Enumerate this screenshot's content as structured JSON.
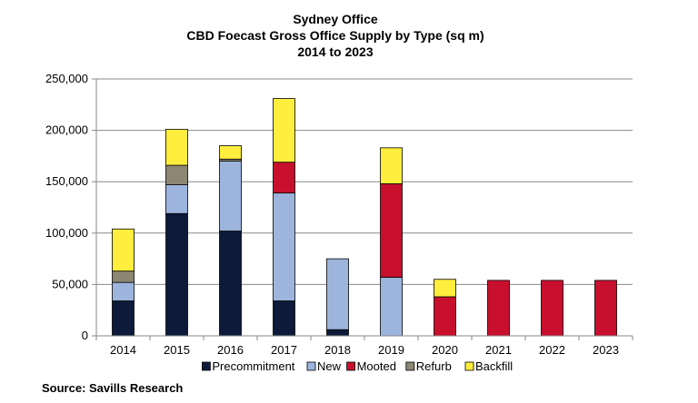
{
  "chart_data": {
    "type": "bar",
    "stacked": true,
    "title": [
      "Sydney Office",
      "CBD Foecast Gross Office Supply by Type (sq m)",
      "2014 to 2023"
    ],
    "xlabel": "",
    "ylabel": "",
    "categories": [
      "2014",
      "2015",
      "2016",
      "2017",
      "2018",
      "2019",
      "2020",
      "2021",
      "2022",
      "2023"
    ],
    "ylim": [
      0,
      250000
    ],
    "yticks": [
      0,
      50000,
      100000,
      150000,
      200000,
      250000
    ],
    "ytick_labels": [
      "0",
      "50,000",
      "100,000",
      "150,000",
      "200,000",
      "250,000"
    ],
    "grid": true,
    "legend_position": "bottom",
    "series": [
      {
        "name": "Precommitment",
        "color": "#0d1a3a",
        "values": [
          34000,
          119000,
          102000,
          34000,
          6000,
          0,
          0,
          0,
          0,
          0
        ]
      },
      {
        "name": "New",
        "color": "#9db5dd",
        "values": [
          18000,
          28000,
          68000,
          105000,
          69000,
          57000,
          0,
          0,
          0,
          0
        ]
      },
      {
        "name": "Mooted",
        "color": "#c8102e",
        "values": [
          0,
          0,
          0,
          30000,
          0,
          91000,
          38000,
          54000,
          54000,
          54000
        ]
      },
      {
        "name": "Refurb",
        "color": "#8c8672",
        "values": [
          11000,
          19000,
          2000,
          0,
          0,
          0,
          0,
          0,
          0,
          0
        ]
      },
      {
        "name": "Backfill",
        "color": "#ffee3d",
        "values": [
          41000,
          35000,
          13000,
          62000,
          0,
          35000,
          17000,
          0,
          0,
          0
        ]
      }
    ]
  },
  "source": "Source: Savills Research"
}
